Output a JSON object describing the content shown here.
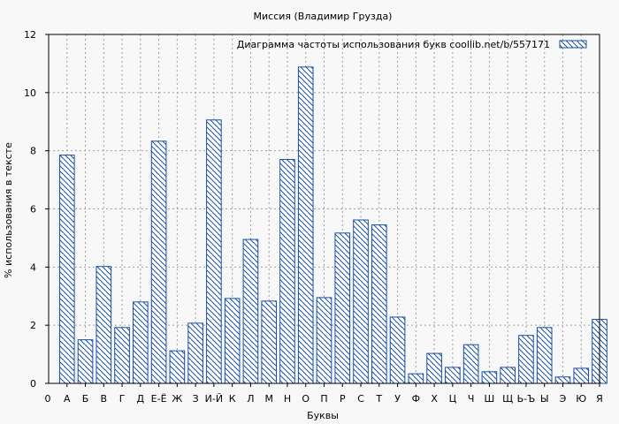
{
  "chart_data": {
    "type": "bar",
    "title": "Миссия (Владимир Грузда)",
    "xlabel": "Буквы",
    "ylabel": "% использования в тексте",
    "legend_label": "Диаграмма частоты использования букв  coollib.net/b/557171",
    "legend_position": "top-right",
    "grid": true,
    "ylim": [
      0,
      12
    ],
    "yticks": [
      "0",
      "2",
      "4",
      "6",
      "8",
      "10",
      "12"
    ],
    "x_start_label": "0",
    "categories": [
      "А",
      "Б",
      "В",
      "Г",
      "Д",
      "Е-Ё",
      "Ж",
      "З",
      "И-Й",
      "К",
      "Л",
      "М",
      "Н",
      "О",
      "П",
      "Р",
      "С",
      "Т",
      "У",
      "Ф",
      "Х",
      "Ц",
      "Ч",
      "Ш",
      "Щ",
      "Ь-Ъ",
      "Ы",
      "Э",
      "Ю",
      "Я"
    ],
    "values": [
      7.85,
      1.5,
      4.02,
      1.92,
      2.8,
      8.33,
      1.12,
      2.07,
      9.06,
      2.92,
      4.95,
      2.83,
      7.7,
      10.88,
      2.95,
      5.17,
      5.62,
      5.45,
      2.28,
      0.33,
      1.03,
      0.55,
      1.33,
      0.4,
      0.55,
      1.65,
      1.92,
      0.22,
      0.52,
      2.2
    ]
  },
  "colors": {
    "bar_stroke": "#1a4fa0",
    "background": "#f8f8f8",
    "grid": "#a0a0a0"
  }
}
